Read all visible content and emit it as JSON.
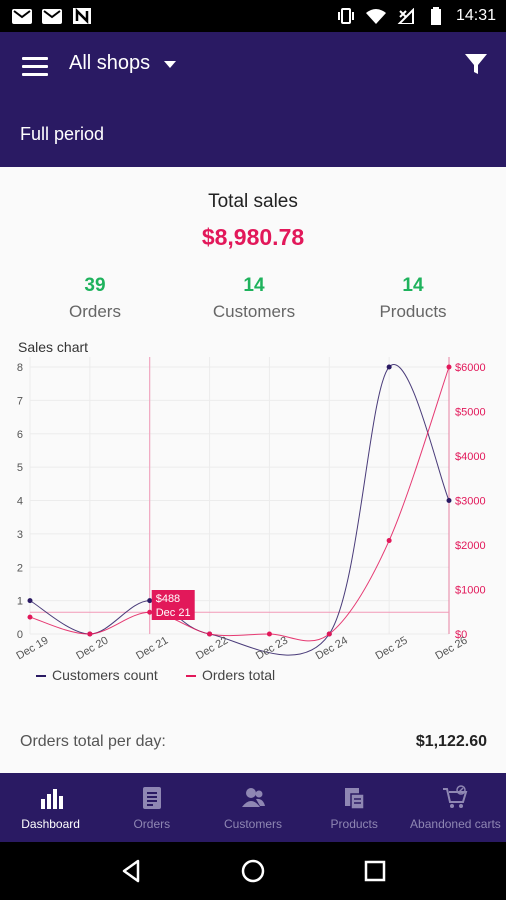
{
  "status_bar": {
    "time": "14:31",
    "left_icons": [
      "gmail-icon",
      "gmail-icon",
      "n-app-icon"
    ],
    "right_icons": [
      "vibrate-icon",
      "wifi-icon",
      "no-signal-icon",
      "battery-icon"
    ]
  },
  "app_bar": {
    "shop_select": "All shops",
    "period": "Full period",
    "background": "#2a1a63"
  },
  "summary": {
    "total_label": "Total sales",
    "total_value": "$8,980.78",
    "stats": [
      {
        "value": "39",
        "label": "Orders"
      },
      {
        "value": "14",
        "label": "Customers"
      },
      {
        "value": "14",
        "label": "Products"
      }
    ]
  },
  "chart_title": "Sales chart",
  "chart_data": {
    "type": "line",
    "x": [
      "Dec 19",
      "Dec 20",
      "Dec 21",
      "Dec 22",
      "Dec 23",
      "Dec 24",
      "Dec 25",
      "Dec 26"
    ],
    "series": [
      {
        "name": "Customers count",
        "axis": "left",
        "color": "#2a1a63",
        "values": [
          1,
          0,
          1,
          0,
          null,
          0,
          8,
          4
        ]
      },
      {
        "name": "Orders total",
        "axis": "right",
        "color": "#e2185a",
        "values": [
          380,
          0,
          488,
          0,
          0,
          0,
          2100,
          6000
        ]
      }
    ],
    "y_left": {
      "min": 0,
      "max": 8,
      "ticks": [
        "0",
        "1",
        "2",
        "3",
        "4",
        "5",
        "6",
        "7",
        "8"
      ]
    },
    "y_right": {
      "min": 0,
      "max": 6000,
      "ticks": [
        "$0",
        "$1000",
        "$2000",
        "$3000",
        "$4000",
        "$5000",
        "$6000"
      ]
    },
    "highlight": {
      "index": 2,
      "value_label": "$488",
      "date_label": "Dec 21"
    },
    "grid": true,
    "legend": "bottom-left"
  },
  "per_day": {
    "label": "Orders total per day:",
    "value": "$1,122.60"
  },
  "bottom_nav": [
    {
      "label": "Dashboard",
      "icon": "bar-chart-icon",
      "active": true
    },
    {
      "label": "Orders",
      "icon": "orders-list-icon",
      "active": false
    },
    {
      "label": "Customers",
      "icon": "customers-icon",
      "active": false
    },
    {
      "label": "Products",
      "icon": "products-icon",
      "active": false
    },
    {
      "label": "Abandoned carts",
      "icon": "abandoned-cart-icon",
      "active": false
    }
  ],
  "colors": {
    "accent": "#e2185a",
    "positive": "#1eb25c",
    "primary": "#2a1a63"
  }
}
